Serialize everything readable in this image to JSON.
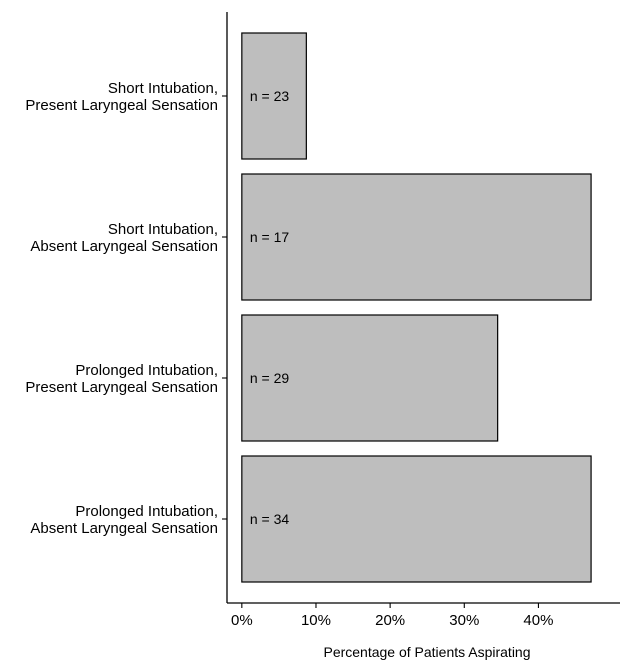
{
  "chart_data": {
    "type": "bar",
    "orientation": "horizontal",
    "categories": [
      [
        "Short Intubation,",
        "Present Laryngeal Sensation"
      ],
      [
        "Short Intubation,",
        "Absent Laryngeal Sensation"
      ],
      [
        "Prolonged Intubation,",
        "Present Laryngeal Sensation"
      ],
      [
        "Prolonged Intubation,",
        "Absent Laryngeal Sensation"
      ]
    ],
    "values": [
      8.7,
      47.1,
      34.5,
      47.1
    ],
    "bar_labels": [
      "n = 23",
      "n = 17",
      "n = 29",
      "n = 34"
    ],
    "xlabel": "Percentage of Patients Aspirating",
    "ylabel": "",
    "xlim": [
      -2,
      51
    ],
    "xticks": [
      0,
      10,
      20,
      30,
      40
    ],
    "xtick_labels": [
      "0%",
      "10%",
      "20%",
      "30%",
      "40%"
    ],
    "grid": false,
    "colors": {
      "bar_fill": "#bebebe",
      "bar_stroke": "#000000"
    }
  }
}
